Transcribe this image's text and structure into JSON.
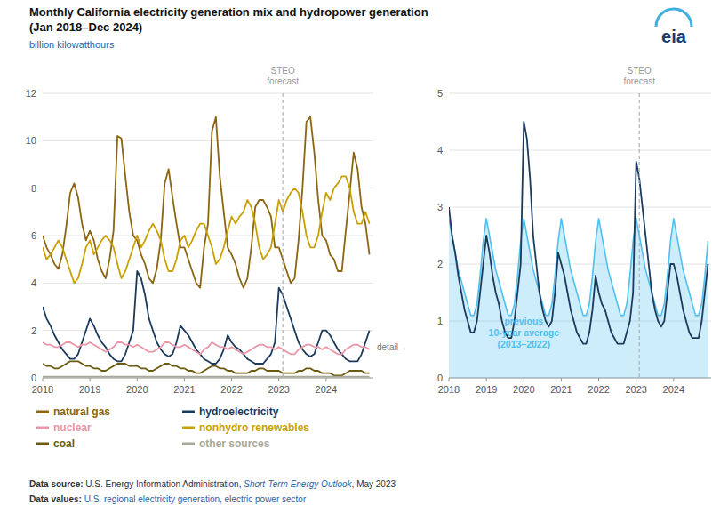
{
  "chart_data": [
    {
      "type": "line",
      "title": "Monthly California electricity generation mix and hydropower generation",
      "subtitle": "(Jan 2018–Dec 2024)",
      "y_label": "billion kilowatthours",
      "logo": "eia",
      "legend": "bottom",
      "grid": true,
      "xlim": [
        2018,
        2025.0
      ],
      "xticks": [
        2018,
        2019,
        2020,
        2021,
        2022,
        2023,
        2024
      ],
      "ylim": [
        0,
        12
      ],
      "yticks": [
        0,
        2,
        4,
        6,
        8,
        10,
        12
      ],
      "x": [
        2018,
        2018.0833333333333,
        2018.1666666666667,
        2018.25,
        2018.3333333333333,
        2018.4166666666667,
        2018.5,
        2018.5833333333333,
        2018.6666666666667,
        2018.75,
        2018.8333333333333,
        2018.9166666666667,
        2019,
        2019.0833333333333,
        2019.1666666666667,
        2019.25,
        2019.3333333333333,
        2019.4166666666667,
        2019.5,
        2019.5833333333333,
        2019.6666666666667,
        2019.75,
        2019.8333333333333,
        2019.9166666666667,
        2020,
        2020.0833333333333,
        2020.1666666666667,
        2020.25,
        2020.3333333333333,
        2020.4166666666667,
        2020.5,
        2020.5833333333333,
        2020.6666666666667,
        2020.75,
        2020.8333333333333,
        2020.9166666666667,
        2021,
        2021.0833333333333,
        2021.1666666666667,
        2021.25,
        2021.3333333333333,
        2021.4166666666667,
        2021.5,
        2021.5833333333333,
        2021.6666666666667,
        2021.75,
        2021.8333333333333,
        2021.9166666666667,
        2022,
        2022.0833333333333,
        2022.1666666666667,
        2022.25,
        2022.3333333333333,
        2022.4166666666667,
        2022.5,
        2022.5833333333333,
        2022.6666666666667,
        2022.75,
        2022.8333333333333,
        2022.9166666666667,
        2023,
        2023.0833333333333,
        2023.1666666666667,
        2023.25,
        2023.3333333333333,
        2023.4166666666667,
        2023.5,
        2023.5833333333333,
        2023.6666666666667,
        2023.75,
        2023.8333333333333,
        2023.9166666666667,
        2024,
        2024.0833333333333,
        2024.1666666666667,
        2024.25,
        2024.3333333333333,
        2024.4166666666667,
        2024.5,
        2024.5833333333333,
        2024.6666666666667,
        2024.75,
        2024.8333333333333,
        2024.9166666666667
      ],
      "series": [
        {
          "name": "natural gas",
          "color": "#8B6510",
          "values": [
            6.0,
            5.5,
            5.2,
            4.8,
            4.6,
            5.2,
            6.4,
            7.8,
            8.2,
            7.6,
            6.5,
            5.8,
            6.2,
            5.8,
            5.0,
            4.5,
            4.2,
            5.0,
            6.2,
            10.2,
            10.1,
            8.5,
            7.0,
            6.0,
            5.8,
            5.2,
            4.8,
            4.2,
            4.0,
            4.6,
            5.8,
            8.2,
            8.8,
            7.6,
            6.5,
            5.5,
            5.5,
            5.0,
            4.5,
            4.0,
            3.8,
            5.5,
            6.5,
            10.4,
            11.0,
            8.5,
            7.0,
            5.5,
            5.2,
            4.8,
            4.2,
            3.8,
            4.2,
            5.5,
            7.2,
            7.5,
            7.5,
            7.2,
            6.8,
            5.5,
            5.5,
            5.0,
            4.5,
            4.0,
            4.2,
            5.8,
            8.0,
            10.8,
            11.0,
            9.5,
            7.5,
            6.0,
            5.8,
            5.2,
            5.0,
            4.5,
            4.5,
            6.2,
            7.8,
            9.5,
            8.8,
            7.2,
            6.5,
            5.2
          ]
        },
        {
          "name": "nonhydro renewables",
          "color": "#C8A000",
          "values": [
            5.5,
            5.0,
            5.2,
            5.5,
            5.8,
            5.5,
            5.0,
            4.5,
            4.0,
            4.2,
            4.8,
            5.5,
            5.8,
            5.2,
            5.5,
            5.8,
            6.0,
            5.8,
            5.5,
            4.8,
            4.2,
            4.5,
            5.0,
            5.5,
            6.0,
            5.5,
            5.8,
            6.2,
            6.5,
            6.2,
            5.8,
            5.0,
            4.5,
            4.5,
            5.0,
            5.8,
            6.0,
            5.5,
            5.8,
            6.2,
            6.5,
            6.5,
            6.0,
            5.5,
            4.8,
            5.0,
            5.5,
            6.2,
            6.8,
            6.5,
            6.8,
            7.0,
            7.5,
            7.2,
            6.5,
            5.5,
            5.0,
            5.2,
            5.5,
            6.5,
            7.5,
            7.0,
            7.5,
            7.8,
            8.0,
            7.8,
            7.0,
            6.0,
            5.5,
            5.5,
            6.0,
            7.0,
            7.8,
            7.5,
            8.0,
            8.2,
            8.5,
            8.5,
            8.0,
            7.0,
            6.5,
            6.5,
            7.0,
            6.5
          ]
        },
        {
          "name": "hydroelectricity",
          "color": "#1B3A5C",
          "values": [
            3.0,
            2.5,
            2.2,
            1.8,
            1.5,
            1.2,
            1.0,
            0.8,
            0.8,
            1.0,
            1.5,
            2.0,
            2.5,
            2.2,
            1.8,
            1.5,
            1.3,
            1.0,
            0.8,
            0.7,
            0.7,
            1.0,
            1.5,
            2.0,
            4.5,
            4.2,
            3.5,
            2.5,
            2.0,
            1.5,
            1.2,
            1.0,
            0.9,
            1.0,
            1.5,
            2.2,
            2.0,
            1.8,
            1.5,
            1.2,
            1.0,
            0.8,
            0.7,
            0.6,
            0.6,
            0.8,
            1.2,
            1.8,
            1.5,
            1.3,
            1.2,
            1.0,
            0.8,
            0.7,
            0.6,
            0.6,
            0.6,
            0.8,
            1.0,
            1.5,
            3.8,
            3.5,
            3.0,
            2.5,
            2.0,
            1.5,
            1.2,
            1.0,
            0.9,
            1.0,
            1.5,
            2.0,
            2.0,
            1.8,
            1.5,
            1.2,
            1.0,
            0.8,
            0.7,
            0.7,
            0.7,
            1.0,
            1.5,
            2.0
          ]
        },
        {
          "name": "nuclear",
          "color": "#E896A8",
          "values": [
            1.5,
            1.4,
            1.4,
            1.3,
            1.3,
            1.4,
            1.5,
            1.5,
            1.4,
            1.3,
            1.4,
            1.4,
            1.5,
            1.4,
            1.3,
            1.2,
            1.1,
            1.2,
            1.3,
            1.5,
            1.5,
            1.4,
            1.4,
            1.3,
            1.4,
            1.3,
            1.2,
            1.1,
            1.1,
            1.2,
            1.3,
            1.5,
            1.5,
            1.4,
            1.3,
            1.3,
            1.4,
            1.3,
            1.2,
            1.1,
            1.0,
            1.2,
            1.3,
            1.5,
            1.4,
            1.3,
            1.3,
            1.2,
            1.3,
            1.2,
            1.1,
            1.0,
            1.1,
            1.2,
            1.3,
            1.4,
            1.4,
            1.3,
            1.3,
            1.2,
            1.3,
            1.2,
            1.1,
            1.0,
            1.0,
            1.2,
            1.3,
            1.4,
            1.4,
            1.3,
            1.3,
            1.2,
            1.3,
            1.2,
            1.1,
            1.0,
            1.0,
            1.2,
            1.3,
            1.4,
            1.4,
            1.3,
            1.3,
            1.2
          ]
        },
        {
          "name": "coal",
          "color": "#6B5B10",
          "values": [
            0.6,
            0.5,
            0.5,
            0.4,
            0.4,
            0.5,
            0.6,
            0.7,
            0.7,
            0.7,
            0.6,
            0.5,
            0.5,
            0.4,
            0.4,
            0.3,
            0.3,
            0.4,
            0.5,
            0.6,
            0.6,
            0.6,
            0.5,
            0.5,
            0.5,
            0.4,
            0.4,
            0.3,
            0.3,
            0.4,
            0.5,
            0.6,
            0.6,
            0.5,
            0.5,
            0.4,
            0.4,
            0.3,
            0.3,
            0.2,
            0.2,
            0.3,
            0.4,
            0.5,
            0.5,
            0.4,
            0.4,
            0.3,
            0.3,
            0.2,
            0.2,
            0.2,
            0.2,
            0.3,
            0.3,
            0.4,
            0.4,
            0.3,
            0.3,
            0.3,
            0.3,
            0.2,
            0.2,
            0.2,
            0.2,
            0.3,
            0.3,
            0.4,
            0.4,
            0.3,
            0.3,
            0.2,
            0.2,
            0.2,
            0.1,
            0.1,
            0.1,
            0.2,
            0.3,
            0.3,
            0.3,
            0.3,
            0.2,
            0.2
          ]
        },
        {
          "name": "other sources",
          "color": "#A8A898",
          "values": [
            0.05,
            0.05,
            0.05,
            0.05,
            0.05,
            0.05,
            0.05,
            0.05,
            0.05,
            0.05,
            0.05,
            0.05,
            0.05,
            0.05,
            0.05,
            0.05,
            0.05,
            0.05,
            0.05,
            0.05,
            0.05,
            0.05,
            0.05,
            0.05,
            0.05,
            0.05,
            0.05,
            0.05,
            0.05,
            0.05,
            0.05,
            0.05,
            0.05,
            0.05,
            0.05,
            0.05,
            0.05,
            0.05,
            0.05,
            0.05,
            0.05,
            0.05,
            0.05,
            0.05,
            0.05,
            0.05,
            0.05,
            0.05,
            0.05,
            0.05,
            0.05,
            0.05,
            0.05,
            0.05,
            0.05,
            0.05,
            0.05,
            0.05,
            0.05,
            0.05,
            0.05,
            0.05,
            0.05,
            0.05,
            0.05,
            0.05,
            0.05,
            0.05,
            0.05,
            0.05,
            0.05,
            0.05,
            0.05,
            0.05,
            0.05,
            0.05,
            0.05,
            0.05,
            0.05,
            0.05,
            0.05,
            0.05,
            0.05,
            0.05
          ]
        }
      ],
      "annotations": [
        {
          "text": "detail→"
        },
        {
          "text": "STEO\nforecast",
          "x": 2023.0833333333333
        }
      ],
      "footer": [
        [
          "Data source: ",
          "U.S. Energy Information Administration, ",
          "Short-Term Energy Outlook",
          ", May 2023"
        ],
        [
          "Data values: ",
          "U.S. regional electricity generation, electric power sector"
        ]
      ]
    },
    {
      "type": "line",
      "grid": true,
      "xlim": [
        2018,
        2025.0
      ],
      "xticks": [
        2018,
        2019,
        2020,
        2021,
        2022,
        2023,
        2024
      ],
      "ylim": [
        0,
        5
      ],
      "yticks": [
        0,
        1,
        2,
        3,
        4,
        5
      ],
      "x": [
        2018,
        2018.0833333333333,
        2018.1666666666667,
        2018.25,
        2018.3333333333333,
        2018.4166666666667,
        2018.5,
        2018.5833333333333,
        2018.6666666666667,
        2018.75,
        2018.8333333333333,
        2018.9166666666667,
        2019,
        2019.0833333333333,
        2019.1666666666667,
        2019.25,
        2019.3333333333333,
        2019.4166666666667,
        2019.5,
        2019.5833333333333,
        2019.6666666666667,
        2019.75,
        2019.8333333333333,
        2019.9166666666667,
        2020,
        2020.0833333333333,
        2020.1666666666667,
        2020.25,
        2020.3333333333333,
        2020.4166666666667,
        2020.5,
        2020.5833333333333,
        2020.6666666666667,
        2020.75,
        2020.8333333333333,
        2020.9166666666667,
        2021,
        2021.0833333333333,
        2021.1666666666667,
        2021.25,
        2021.3333333333333,
        2021.4166666666667,
        2021.5,
        2021.5833333333333,
        2021.6666666666667,
        2021.75,
        2021.8333333333333,
        2021.9166666666667,
        2022,
        2022.0833333333333,
        2022.1666666666667,
        2022.25,
        2022.3333333333333,
        2022.4166666666667,
        2022.5,
        2022.5833333333333,
        2022.6666666666667,
        2022.75,
        2022.8333333333333,
        2022.9166666666667,
        2023,
        2023.0833333333333,
        2023.1666666666667,
        2023.25,
        2023.3333333333333,
        2023.4166666666667,
        2023.5,
        2023.5833333333333,
        2023.6666666666667,
        2023.75,
        2023.8333333333333,
        2023.9166666666667,
        2024,
        2024.0833333333333,
        2024.1666666666667,
        2024.25,
        2024.3333333333333,
        2024.4166666666667,
        2024.5,
        2024.5833333333333,
        2024.6666666666667,
        2024.75,
        2024.8333333333333,
        2024.9166666666667
      ],
      "series": [
        {
          "name": "previous\n10-year average\n(2013–2022)",
          "type": "area",
          "color": "#50C0F0",
          "values": [
            2.8,
            2.5,
            2.2,
            1.9,
            1.7,
            1.5,
            1.3,
            1.1,
            1.1,
            1.3,
            1.8,
            2.4,
            2.8,
            2.5,
            2.2,
            1.9,
            1.7,
            1.5,
            1.3,
            1.1,
            1.1,
            1.3,
            1.8,
            2.4,
            2.8,
            2.5,
            2.2,
            1.9,
            1.7,
            1.5,
            1.3,
            1.1,
            1.1,
            1.3,
            1.8,
            2.4,
            2.8,
            2.5,
            2.2,
            1.9,
            1.7,
            1.5,
            1.3,
            1.1,
            1.1,
            1.3,
            1.8,
            2.4,
            2.8,
            2.5,
            2.2,
            1.9,
            1.7,
            1.5,
            1.3,
            1.1,
            1.1,
            1.3,
            1.8,
            2.4,
            2.8,
            2.5,
            2.2,
            1.9,
            1.7,
            1.5,
            1.3,
            1.1,
            1.1,
            1.3,
            1.8,
            2.4,
            2.8,
            2.5,
            2.2,
            1.9,
            1.7,
            1.5,
            1.3,
            1.1,
            1.1,
            1.3,
            1.8,
            2.4
          ]
        },
        {
          "color": "#1B3A5C",
          "values": [
            3.0,
            2.5,
            2.2,
            1.8,
            1.5,
            1.2,
            1.0,
            0.8,
            0.8,
            1.0,
            1.5,
            2.0,
            2.5,
            2.2,
            1.8,
            1.5,
            1.3,
            1.0,
            0.8,
            0.7,
            0.7,
            1.0,
            1.5,
            2.0,
            4.5,
            4.2,
            3.5,
            2.5,
            2.0,
            1.5,
            1.2,
            1.0,
            0.9,
            1.0,
            1.5,
            2.2,
            2.0,
            1.8,
            1.5,
            1.2,
            1.0,
            0.8,
            0.7,
            0.6,
            0.6,
            0.8,
            1.2,
            1.8,
            1.5,
            1.3,
            1.2,
            1.0,
            0.8,
            0.7,
            0.6,
            0.6,
            0.6,
            0.8,
            1.0,
            1.5,
            3.8,
            3.5,
            3.0,
            2.5,
            2.0,
            1.5,
            1.2,
            1.0,
            0.9,
            1.0,
            1.5,
            2.0,
            2.0,
            1.8,
            1.5,
            1.2,
            1.0,
            0.8,
            0.7,
            0.7,
            0.7,
            1.0,
            1.5,
            2.0
          ]
        }
      ],
      "annotations": [
        {
          "text": "STEO\nforecast",
          "x": 2023.0833333333333
        }
      ]
    }
  ]
}
